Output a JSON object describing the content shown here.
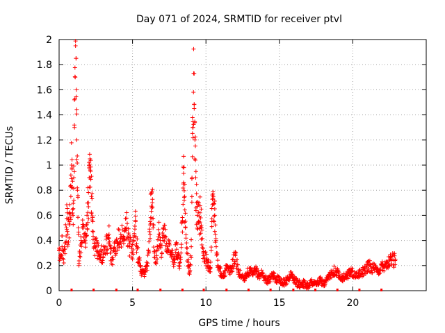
{
  "chart_data": {
    "type": "scatter",
    "title": "Day 071 of 2024, SRMTID for receiver ptvl",
    "xlabel": "GPS time / hours",
    "ylabel": "SRMTID / TECUs",
    "xlim": [
      0,
      25
    ],
    "ylim": [
      0,
      2
    ],
    "x_ticks": [
      0,
      5,
      10,
      15,
      20
    ],
    "x_tick_labels": [
      "0",
      "5",
      "10",
      "15",
      "20"
    ],
    "y_ticks": [
      0,
      0.2,
      0.4,
      0.6,
      0.8,
      1,
      1.2,
      1.4,
      1.6,
      1.8,
      2
    ],
    "y_tick_labels": [
      "0",
      "0.2",
      "0.4",
      "0.6",
      "0.8",
      "1",
      "1.2",
      "1.4",
      "1.6",
      "1.8",
      "2"
    ],
    "grid": true,
    "marker": "+",
    "color": "#ff0000",
    "series": [
      {
        "name": "SRMTID",
        "points": [
          [
            0.0,
            0.32
          ],
          [
            0.1,
            0.28
          ],
          [
            0.2,
            0.35
          ],
          [
            0.3,
            0.25
          ],
          [
            0.4,
            0.38
          ],
          [
            0.5,
            0.5
          ],
          [
            0.55,
            0.62
          ],
          [
            0.6,
            0.45
          ],
          [
            0.7,
            0.55
          ],
          [
            0.8,
            0.75
          ],
          [
            0.85,
            1.0
          ],
          [
            0.9,
            0.82
          ],
          [
            0.95,
            0.6
          ],
          [
            1.0,
            0.9
          ],
          [
            1.05,
            1.3
          ],
          [
            1.1,
            1.7
          ],
          [
            1.12,
            1.95
          ],
          [
            1.15,
            1.85
          ],
          [
            1.18,
            1.6
          ],
          [
            1.2,
            1.2
          ],
          [
            1.25,
            0.8
          ],
          [
            1.3,
            0.5
          ],
          [
            1.35,
            0.2
          ],
          [
            1.4,
            0.3
          ],
          [
            1.5,
            0.4
          ],
          [
            1.6,
            0.5
          ],
          [
            1.7,
            0.45
          ],
          [
            1.8,
            0.38
          ],
          [
            1.9,
            0.6
          ],
          [
            2.0,
            0.7
          ],
          [
            2.05,
            0.9
          ],
          [
            2.1,
            1.05
          ],
          [
            2.15,
            0.95
          ],
          [
            2.2,
            0.75
          ],
          [
            2.3,
            0.55
          ],
          [
            2.4,
            0.38
          ],
          [
            2.5,
            0.35
          ],
          [
            2.6,
            0.32
          ],
          [
            2.7,
            0.28
          ],
          [
            2.8,
            0.25
          ],
          [
            2.9,
            0.3
          ],
          [
            3.0,
            0.27
          ],
          [
            3.2,
            0.35
          ],
          [
            3.4,
            0.42
          ],
          [
            3.5,
            0.3
          ],
          [
            3.6,
            0.25
          ],
          [
            3.8,
            0.32
          ],
          [
            4.0,
            0.38
          ],
          [
            4.2,
            0.45
          ],
          [
            4.4,
            0.4
          ],
          [
            4.5,
            0.48
          ],
          [
            4.6,
            0.5
          ],
          [
            4.7,
            0.42
          ],
          [
            4.8,
            0.35
          ],
          [
            5.0,
            0.3
          ],
          [
            5.1,
            0.4
          ],
          [
            5.2,
            0.55
          ],
          [
            5.3,
            0.35
          ],
          [
            5.4,
            0.25
          ],
          [
            5.5,
            0.2
          ],
          [
            5.6,
            0.15
          ],
          [
            5.8,
            0.13
          ],
          [
            6.0,
            0.2
          ],
          [
            6.1,
            0.3
          ],
          [
            6.2,
            0.55
          ],
          [
            6.3,
            0.78
          ],
          [
            6.35,
            0.7
          ],
          [
            6.4,
            0.5
          ],
          [
            6.5,
            0.3
          ],
          [
            6.6,
            0.22
          ],
          [
            6.7,
            0.35
          ],
          [
            6.8,
            0.45
          ],
          [
            6.9,
            0.4
          ],
          [
            7.0,
            0.3
          ],
          [
            7.1,
            0.5
          ],
          [
            7.2,
            0.42
          ],
          [
            7.4,
            0.35
          ],
          [
            7.5,
            0.38
          ],
          [
            7.6,
            0.3
          ],
          [
            7.8,
            0.25
          ],
          [
            8.0,
            0.33
          ],
          [
            8.1,
            0.28
          ],
          [
            8.2,
            0.22
          ],
          [
            8.3,
            0.3
          ],
          [
            8.4,
            0.55
          ],
          [
            8.45,
            0.85
          ],
          [
            8.5,
            0.98
          ],
          [
            8.55,
            0.75
          ],
          [
            8.6,
            0.5
          ],
          [
            8.7,
            0.3
          ],
          [
            8.8,
            0.2
          ],
          [
            8.9,
            0.15
          ],
          [
            9.0,
            0.35
          ],
          [
            9.05,
            0.9
          ],
          [
            9.1,
            1.3
          ],
          [
            9.15,
            1.58
          ],
          [
            9.2,
            1.45
          ],
          [
            9.25,
            1.2
          ],
          [
            9.3,
            0.9
          ],
          [
            9.35,
            0.7
          ],
          [
            9.4,
            0.6
          ],
          [
            9.5,
            0.55
          ],
          [
            9.6,
            0.62
          ],
          [
            9.7,
            0.5
          ],
          [
            9.8,
            0.3
          ],
          [
            10.0,
            0.25
          ],
          [
            10.2,
            0.2
          ],
          [
            10.3,
            0.15
          ],
          [
            10.4,
            0.55
          ],
          [
            10.5,
            0.75
          ],
          [
            10.6,
            0.6
          ],
          [
            10.7,
            0.35
          ],
          [
            10.8,
            0.2
          ],
          [
            11.0,
            0.15
          ],
          [
            11.2,
            0.12
          ],
          [
            11.4,
            0.18
          ],
          [
            11.6,
            0.15
          ],
          [
            11.8,
            0.2
          ],
          [
            12.0,
            0.28
          ],
          [
            12.2,
            0.15
          ],
          [
            12.4,
            0.12
          ],
          [
            12.6,
            0.1
          ],
          [
            12.8,
            0.14
          ],
          [
            13.0,
            0.15
          ],
          [
            13.2,
            0.13
          ],
          [
            13.4,
            0.16
          ],
          [
            13.6,
            0.12
          ],
          [
            13.8,
            0.14
          ],
          [
            14.0,
            0.1
          ],
          [
            14.2,
            0.08
          ],
          [
            14.4,
            0.1
          ],
          [
            14.6,
            0.12
          ],
          [
            14.8,
            0.09
          ],
          [
            15.0,
            0.1
          ],
          [
            15.2,
            0.06
          ],
          [
            15.5,
            0.08
          ],
          [
            15.8,
            0.13
          ],
          [
            16.0,
            0.09
          ],
          [
            16.3,
            0.05
          ],
          [
            16.6,
            0.06
          ],
          [
            16.9,
            0.04
          ],
          [
            17.2,
            0.07
          ],
          [
            17.5,
            0.05
          ],
          [
            17.8,
            0.08
          ],
          [
            18.1,
            0.05
          ],
          [
            18.4,
            0.12
          ],
          [
            18.7,
            0.16
          ],
          [
            19.0,
            0.14
          ],
          [
            19.3,
            0.1
          ],
          [
            19.6,
            0.12
          ],
          [
            19.9,
            0.15
          ],
          [
            20.2,
            0.11
          ],
          [
            20.5,
            0.14
          ],
          [
            20.8,
            0.16
          ],
          [
            21.1,
            0.2
          ],
          [
            21.4,
            0.18
          ],
          [
            21.7,
            0.15
          ],
          [
            22.0,
            0.2
          ],
          [
            22.3,
            0.22
          ],
          [
            22.6,
            0.24
          ],
          [
            22.9,
            0.25
          ]
        ]
      }
    ],
    "baseline_markers": [
      0.85,
      2.35,
      3.9,
      5.35,
      6.9,
      8.4,
      9.85,
      11.4,
      12.9,
      14.4,
      15.95,
      17.45,
      18.95,
      20.45,
      21.95
    ]
  }
}
